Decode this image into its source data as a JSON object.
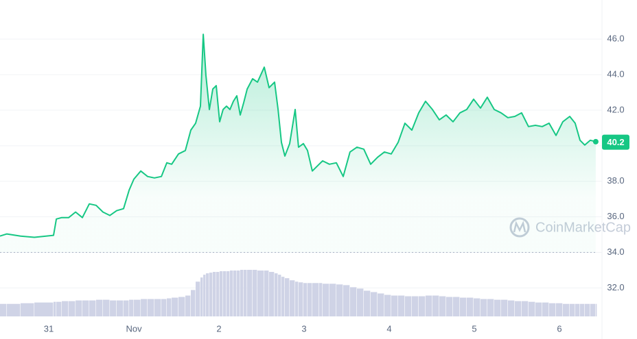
{
  "chart_data": {
    "type": "line",
    "watermark": "CoinMarketCap",
    "current_value_label": "40.2",
    "current_value": 40.2,
    "x": [
      -0.573,
      -0.492,
      -0.331,
      -0.169,
      0.056,
      0.089,
      0.153,
      0.234,
      0.315,
      0.395,
      0.476,
      0.556,
      0.637,
      0.718,
      0.798,
      0.879,
      0.944,
      1.0,
      1.081,
      1.161,
      1.242,
      1.323,
      1.387,
      1.444,
      1.524,
      1.605,
      1.669,
      1.726,
      1.782,
      1.815,
      1.847,
      1.887,
      1.927,
      1.968,
      2.008,
      2.048,
      2.089,
      2.129,
      2.169,
      2.21,
      2.25,
      2.29,
      2.331,
      2.395,
      2.452,
      2.532,
      2.589,
      2.653,
      2.694,
      2.734,
      2.774,
      2.831,
      2.895,
      2.935,
      2.992,
      3.04,
      3.097,
      3.177,
      3.218,
      3.298,
      3.379,
      3.46,
      3.54,
      3.621,
      3.702,
      3.782,
      3.863,
      3.944,
      4.024,
      4.105,
      4.185,
      4.266,
      4.347,
      4.427,
      4.508,
      4.589,
      4.669,
      4.75,
      4.831,
      4.911,
      4.992,
      5.073,
      5.153,
      5.234,
      5.315,
      5.395,
      5.476,
      5.556,
      5.637,
      5.718,
      5.798,
      5.879,
      5.96,
      6.04,
      6.121,
      6.185,
      6.242,
      6.298,
      6.363,
      6.427
    ],
    "series": [
      {
        "color": "#16c784",
        "values": [
          34.92,
          35.04,
          34.92,
          34.85,
          34.96,
          35.88,
          35.96,
          35.96,
          36.27,
          35.96,
          36.73,
          36.65,
          36.27,
          36.08,
          36.35,
          36.46,
          37.5,
          38.12,
          38.58,
          38.27,
          38.19,
          38.27,
          39.04,
          38.96,
          39.54,
          39.73,
          40.88,
          41.27,
          42.23,
          46.27,
          43.96,
          42.04,
          43.19,
          43.38,
          41.35,
          42.04,
          42.23,
          42.04,
          42.5,
          42.81,
          41.73,
          42.42,
          43.19,
          43.77,
          43.58,
          44.42,
          43.27,
          43.58,
          42.04,
          40.19,
          39.42,
          40.12,
          42.04,
          39.92,
          40.12,
          39.73,
          38.58,
          38.96,
          39.15,
          38.96,
          39.04,
          38.27,
          39.65,
          39.92,
          39.81,
          38.96,
          39.35,
          39.65,
          39.54,
          40.19,
          41.27,
          40.88,
          41.85,
          42.5,
          42.04,
          41.46,
          41.73,
          41.35,
          41.85,
          42.04,
          42.62,
          42.12,
          42.73,
          42.04,
          41.85,
          41.58,
          41.65,
          41.85,
          41.08,
          41.15,
          41.08,
          41.27,
          40.58,
          41.35,
          41.65,
          41.27,
          40.31,
          40.04,
          40.31,
          40.23
        ]
      }
    ],
    "volume": {
      "color": "#cfd3e6",
      "values": [
        18,
        18,
        19,
        20,
        21,
        21,
        22,
        22,
        23,
        23,
        23,
        24,
        24,
        23,
        23,
        23,
        24,
        24,
        25,
        25,
        25,
        25,
        26,
        27,
        28,
        30,
        38,
        50,
        56,
        60,
        62,
        63,
        64,
        64,
        65,
        65,
        65,
        66,
        66,
        66,
        67,
        67,
        67,
        67,
        66,
        66,
        64,
        62,
        60,
        57,
        55,
        52,
        50,
        49,
        48,
        48,
        48,
        48,
        47,
        47,
        46,
        45,
        42,
        40,
        37,
        35,
        33,
        31,
        30,
        30,
        29,
        29,
        29,
        30,
        30,
        29,
        28,
        28,
        27,
        27,
        26,
        25,
        25,
        24,
        24,
        23,
        22,
        22,
        21,
        20,
        20,
        19,
        19,
        18,
        18,
        18,
        18,
        18,
        18,
        18
      ]
    },
    "xlim": [
      -0.573,
      6.444
    ],
    "ylim": [
      30.4,
      48.2
    ],
    "xticks": [
      {
        "value": 0,
        "label": "31"
      },
      {
        "value": 1,
        "label": "Nov"
      },
      {
        "value": 2,
        "label": "2"
      },
      {
        "value": 3,
        "label": "3"
      },
      {
        "value": 4,
        "label": "4"
      },
      {
        "value": 5,
        "label": "5"
      },
      {
        "value": 6,
        "label": "6"
      }
    ],
    "yticks": [
      {
        "value": 32,
        "label": "32.0"
      },
      {
        "value": 34,
        "label": "34.0"
      },
      {
        "value": 36,
        "label": "36.0"
      },
      {
        "value": 38,
        "label": "38.0"
      },
      {
        "value": 40,
        "label": "40.0"
      },
      {
        "value": 42,
        "label": "42.0"
      },
      {
        "value": 44,
        "label": "44.0"
      },
      {
        "value": 46,
        "label": "46.0"
      }
    ],
    "grid": true
  }
}
